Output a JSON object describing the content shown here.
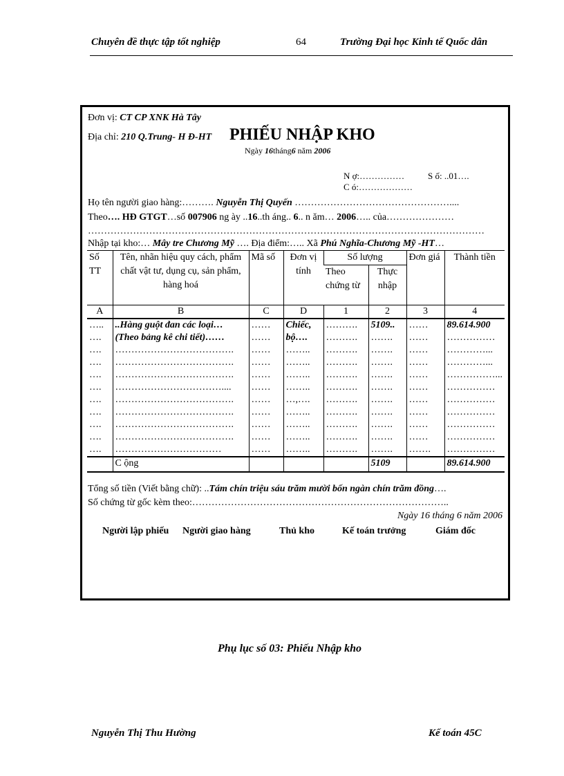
{
  "header": {
    "left": "Chuyên  đề thực tập tốt nghiệp",
    "page": "64",
    "right": "Trường Đại học Kinh tế Quốc dân"
  },
  "form": {
    "unit_label": "Đơn vị:",
    "unit": "CT CP XNK Hà Tây",
    "address_label": "Địa chỉ:",
    "address": "210 Q.Trung- H Đ-HT",
    "title": "PHIẾU NHẬP KHO",
    "date_prefix": "Ngày",
    "day": "16",
    "month_label": "tháng",
    "month": "6",
    "year_label": "năm",
    "year": "2006",
    "debit": "N ợ:……………",
    "number": "S ố: ..01….",
    "credit": "C ó:………………",
    "deliverer_label": "Họ tên người giao hàng:……….",
    "deliverer": "Nguyễn Thị Quyến",
    "deliverer_trail": "…………………………………………....",
    "line_theo_a": "Theo",
    "line_theo_b": "…. HĐ GTGT",
    "line_theo_c": "…số",
    "line_theo_d": "007906",
    "line_theo_e": "ng ày ..",
    "line_theo_f": "16",
    "line_theo_g": "..th áng.. ",
    "line_theo_h": "6",
    "line_theo_i": ".. n ăm… ",
    "line_theo_j": "2006",
    "line_theo_k": "….. của…………………",
    "dots_line": "……………………………………………………………………………………………………………",
    "warehouse_label": "Nhập tại kho:…",
    "warehouse": "Mây tre Chương Mỹ",
    "location_label": "…. Địa điểm:….. Xã",
    "location": "Phú Nghĩa-Chương Mỹ -HT",
    "location_trail": "…",
    "table": {
      "headers": [
        "Số TT",
        "Tên, nhãn hiệu quy cách, phẩm chất vật tư, dụng cụ, sản phẩm, hàng hoá",
        "Mã số",
        "Đơn vị tính",
        "Số lượng",
        "Theo chứng từ",
        "Thực nhập",
        "Đơn giá",
        "Thành tiền"
      ],
      "letters": [
        "A",
        "B",
        "C",
        "D",
        "1",
        "2",
        "3",
        "4"
      ],
      "rows": [
        [
          "…..",
          "..Hàng guột đan các loại…",
          "……",
          "Chiếc,",
          "……….",
          "5109..",
          "……",
          "89.614.900"
        ],
        [
          "….",
          "(Theo bảng kê chi tiết)……",
          "……",
          "bộ….",
          "……….",
          "…….",
          "……",
          "……………"
        ],
        [
          "….",
          "……………………………….",
          "……",
          "……..",
          "……….",
          "…….",
          "……",
          "…………..."
        ],
        [
          "….",
          "……………………………….",
          "……",
          "……..",
          "……….",
          "…….",
          "……",
          "…………..."
        ],
        [
          "….",
          "……………………………….",
          "……",
          "……..",
          "……….",
          "…….",
          "……",
          "……………..."
        ],
        [
          "….",
          "……………………………....",
          "……",
          "……..",
          "……….",
          "…….",
          "……",
          "……………"
        ],
        [
          "….",
          "……………………………….",
          "……",
          "…,….",
          "……….",
          "…….",
          "……",
          "……………"
        ],
        [
          "….",
          "……………………………….",
          "……",
          "……..",
          "……….",
          "…….",
          "……",
          "……………"
        ],
        [
          "….",
          "……………………………….",
          "……",
          "……..",
          "……….",
          "…….",
          "……",
          "……………"
        ],
        [
          "….",
          "……………………………….",
          "……",
          "……..",
          "……….",
          "…….",
          "……",
          "……………"
        ],
        [
          "….",
          "……………………………",
          "……",
          "……..",
          "……….",
          "…….",
          "…….",
          "……………"
        ]
      ],
      "total_label": "C ộng",
      "total_qty": "5109",
      "total_amount": "89.614.900"
    },
    "words_label": "Tổng số tiền (Viết bằng chữ): ..",
    "words": "Tám chín triệu sáu trăm mười bốn ngàn chín trăm đồng",
    "words_trail": "….",
    "attached": "Số chứng từ gốc kèm theo:……………………………………………………………………..",
    "sign_date": "Ngày 16 tháng 6 năm 2006",
    "signers": [
      "Người lập phiếu",
      "Người giao hàng",
      "Thủ kho",
      "Kế toán trưởng",
      "Giám đốc"
    ]
  },
  "caption": "Phụ lục số 03: Phiếu Nhập kho",
  "footer": {
    "left": "Nguyễn  Thị Thu Hường",
    "right": "Kế toán 45C"
  }
}
